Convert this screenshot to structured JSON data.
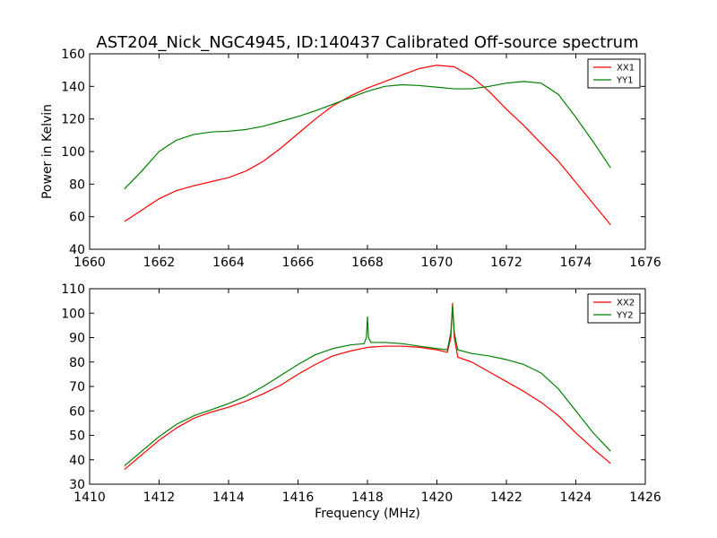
{
  "chart_data": [
    {
      "type": "line",
      "title": "AST204_Nick_NGC4945, ID:140437 Calibrated Off-source spectrum",
      "xlabel": "",
      "ylabel": "Power in Kelvin",
      "xlim": [
        1660,
        1676
      ],
      "ylim": [
        40,
        160
      ],
      "xticks": [
        1660,
        1662,
        1664,
        1666,
        1668,
        1670,
        1672,
        1674,
        1676
      ],
      "yticks": [
        40,
        60,
        80,
        100,
        120,
        140,
        160
      ],
      "legend_position": "top-right",
      "series": [
        {
          "name": "XX1",
          "color": "#ff0000",
          "x": [
            1661.0,
            1661.5,
            1662.0,
            1662.5,
            1663.0,
            1663.5,
            1664.0,
            1664.5,
            1665.0,
            1665.5,
            1666.0,
            1666.5,
            1667.0,
            1667.5,
            1668.0,
            1668.5,
            1669.0,
            1669.5,
            1670.0,
            1670.5,
            1671.0,
            1671.5,
            1672.0,
            1672.5,
            1673.0,
            1673.5,
            1674.0,
            1674.5,
            1675.0
          ],
          "y": [
            57,
            64,
            71,
            76,
            79,
            81.5,
            84,
            88,
            94,
            102,
            111,
            120,
            128,
            134,
            139,
            143,
            147,
            151,
            153,
            152,
            146,
            137,
            126,
            116,
            105,
            94,
            81,
            68,
            55
          ]
        },
        {
          "name": "YY1",
          "color": "#008000",
          "x": [
            1661.0,
            1661.5,
            1662.0,
            1662.5,
            1663.0,
            1663.5,
            1664.0,
            1664.5,
            1665.0,
            1665.5,
            1666.0,
            1666.5,
            1667.0,
            1667.5,
            1668.0,
            1668.5,
            1669.0,
            1669.5,
            1670.0,
            1670.5,
            1671.0,
            1671.5,
            1672.0,
            1672.5,
            1673.0,
            1673.5,
            1674.0,
            1674.5,
            1675.0
          ],
          "y": [
            77,
            88,
            100,
            107,
            110.5,
            112,
            112.5,
            113.5,
            115.5,
            118.5,
            121.5,
            125,
            129,
            133,
            137,
            140,
            141,
            140.5,
            139.5,
            138.5,
            138.5,
            140,
            142,
            143,
            142,
            135,
            121,
            106,
            90
          ]
        }
      ]
    },
    {
      "type": "line",
      "title": "",
      "xlabel": "Frequency (MHz)",
      "ylabel": "",
      "xlim": [
        1410,
        1426
      ],
      "ylim": [
        30,
        110
      ],
      "xticks": [
        1410,
        1412,
        1414,
        1416,
        1418,
        1420,
        1422,
        1424,
        1426
      ],
      "yticks": [
        30,
        40,
        50,
        60,
        70,
        80,
        90,
        100,
        110
      ],
      "legend_position": "top-right",
      "series": [
        {
          "name": "XX2",
          "color": "#ff0000",
          "x": [
            1411.0,
            1411.5,
            1412.0,
            1412.5,
            1413.0,
            1413.5,
            1414.0,
            1414.5,
            1415.0,
            1415.5,
            1416.0,
            1416.5,
            1417.0,
            1417.5,
            1418.0,
            1418.5,
            1419.0,
            1419.5,
            1420.0,
            1420.3,
            1420.4,
            1420.45,
            1420.5,
            1420.6,
            1421.0,
            1421.5,
            1422.0,
            1422.5,
            1423.0,
            1423.5,
            1424.0,
            1424.5,
            1425.0
          ],
          "y": [
            36,
            42,
            48,
            53,
            57,
            59.5,
            61.5,
            64,
            67,
            70.5,
            75,
            79,
            82.5,
            84.5,
            86,
            86.5,
            86.5,
            86,
            85,
            84,
            90,
            104,
            90,
            82,
            80,
            76,
            72,
            68,
            63.5,
            58,
            51,
            44.5,
            38.5
          ]
        },
        {
          "name": "YY2",
          "color": "#008000",
          "x": [
            1411.0,
            1411.5,
            1412.0,
            1412.5,
            1413.0,
            1413.5,
            1414.0,
            1414.5,
            1415.0,
            1415.5,
            1416.0,
            1416.5,
            1417.0,
            1417.5,
            1417.9,
            1417.97,
            1418.0,
            1418.03,
            1418.1,
            1418.5,
            1419.0,
            1419.5,
            1420.0,
            1420.3,
            1420.4,
            1420.45,
            1420.5,
            1420.6,
            1421.0,
            1421.5,
            1422.0,
            1422.5,
            1423.0,
            1423.5,
            1424.0,
            1424.5,
            1425.0
          ],
          "y": [
            37.5,
            43.5,
            49.5,
            54.5,
            58,
            60.5,
            63,
            66,
            70,
            74.5,
            79,
            83,
            85.5,
            87,
            87.5,
            90,
            98.5,
            90,
            88,
            88,
            87.5,
            86.5,
            85.5,
            85,
            92,
            103,
            92,
            85,
            83.5,
            82.5,
            81,
            79,
            75.5,
            69,
            60,
            51,
            43.5
          ]
        }
      ]
    }
  ]
}
